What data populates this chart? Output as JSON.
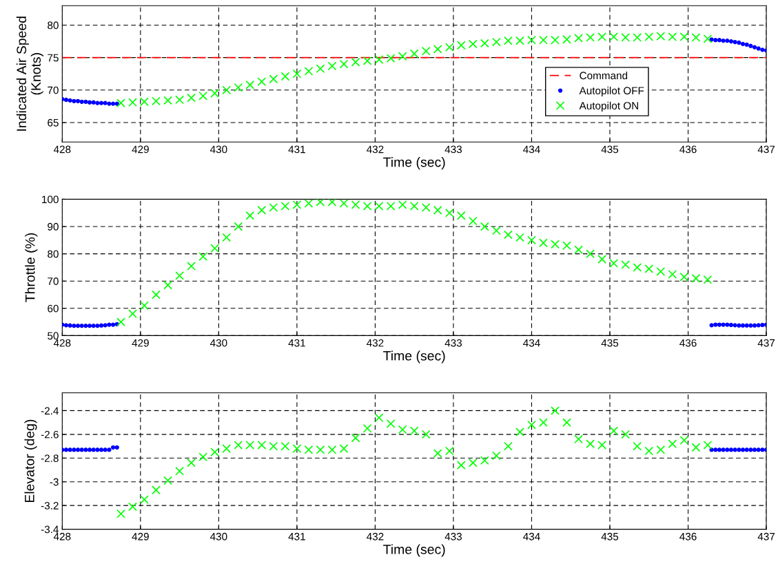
{
  "chart_data": [
    {
      "type": "scatter",
      "xlabel": "Time (sec)",
      "ylabel": "Indicated Air Speed\n(Knots)",
      "xlim": [
        428,
        437
      ],
      "xticks": [
        428,
        429,
        430,
        431,
        432,
        433,
        434,
        435,
        436,
        437
      ],
      "ylim": [
        62,
        83
      ],
      "yticks": [
        65,
        70,
        75,
        80
      ],
      "grid": true,
      "legend": "right",
      "series": [
        {
          "name": "Command",
          "type": "line",
          "color": "#ff0000",
          "line_style": "dashed",
          "marker": "none",
          "x": [
            428,
            437
          ],
          "values": [
            75,
            75
          ]
        },
        {
          "name": "Autopilot OFF",
          "color": "#0000ff",
          "marker": "circle",
          "x": [
            428.0,
            428.05,
            428.1,
            428.15,
            428.2,
            428.25,
            428.3,
            428.35,
            428.4,
            428.45,
            428.5,
            428.55,
            428.6,
            428.65,
            428.7,
            436.3,
            436.35,
            436.4,
            436.45,
            436.5,
            436.55,
            436.6,
            436.65,
            436.7,
            436.75,
            436.8,
            436.85,
            436.9,
            436.95,
            437.0
          ],
          "values": [
            68.6,
            68.5,
            68.4,
            68.3,
            68.3,
            68.2,
            68.2,
            68.1,
            68.1,
            68.0,
            68.0,
            68.0,
            67.9,
            67.9,
            67.9,
            77.8,
            77.7,
            77.7,
            77.6,
            77.6,
            77.5,
            77.4,
            77.3,
            77.1,
            77.0,
            76.8,
            76.6,
            76.4,
            76.2,
            76.1
          ]
        },
        {
          "name": "Autopilot ON",
          "color": "#00ff00",
          "marker": "cross",
          "x": [
            428.75,
            428.9,
            429.05,
            429.2,
            429.35,
            429.5,
            429.65,
            429.8,
            429.95,
            430.1,
            430.25,
            430.4,
            430.55,
            430.7,
            430.85,
            431,
            431.15,
            431.3,
            431.45,
            431.6,
            431.75,
            431.9,
            432.05,
            432.2,
            432.35,
            432.5,
            432.65,
            432.8,
            432.95,
            433.1,
            433.25,
            433.4,
            433.55,
            433.7,
            433.85,
            434,
            434.15,
            434.3,
            434.45,
            434.6,
            434.75,
            434.9,
            435.05,
            435.2,
            435.35,
            435.5,
            435.65,
            435.8,
            435.95,
            436.1,
            436.25
          ],
          "values": [
            68.0,
            68.1,
            68.2,
            68.3,
            68.4,
            68.5,
            68.8,
            69.1,
            69.5,
            70.0,
            70.4,
            70.8,
            71.3,
            71.7,
            72.1,
            72.5,
            72.9,
            73.3,
            73.7,
            74.0,
            74.3,
            74.5,
            74.7,
            74.9,
            75.2,
            75.6,
            76.0,
            76.3,
            76.6,
            76.9,
            77.1,
            77.2,
            77.4,
            77.6,
            77.6,
            77.7,
            77.7,
            77.7,
            77.8,
            78.0,
            78.1,
            78.2,
            78.2,
            78.1,
            78.1,
            78.2,
            78.3,
            78.2,
            78.2,
            78.1,
            77.9
          ]
        }
      ]
    },
    {
      "type": "scatter",
      "xlabel": "Time (sec)",
      "ylabel": "Throttle (%)",
      "xlim": [
        428,
        437
      ],
      "xticks": [
        428,
        429,
        430,
        431,
        432,
        433,
        434,
        435,
        436,
        437
      ],
      "ylim": [
        50,
        100
      ],
      "yticks": [
        50,
        60,
        70,
        80,
        90,
        100
      ],
      "grid": true,
      "series": [
        {
          "color": "#0000ff",
          "marker": "circle",
          "x": [
            428.0,
            428.05,
            428.1,
            428.15,
            428.2,
            428.25,
            428.3,
            428.35,
            428.4,
            428.45,
            428.5,
            428.55,
            428.6,
            428.65,
            428.7,
            436.3,
            436.35,
            436.4,
            436.45,
            436.5,
            436.55,
            436.6,
            436.65,
            436.7,
            436.75,
            436.8,
            436.85,
            436.9,
            436.95,
            437.0
          ],
          "values": [
            54,
            53.8,
            53.7,
            53.6,
            53.6,
            53.6,
            53.6,
            53.6,
            53.6,
            53.6,
            53.7,
            53.8,
            54,
            54,
            54.2,
            53.8,
            54,
            54,
            54,
            54,
            53.9,
            53.8,
            53.7,
            53.7,
            53.7,
            53.7,
            53.7,
            53.8,
            53.9,
            54
          ]
        },
        {
          "color": "#00ff00",
          "marker": "cross",
          "x": [
            428.75,
            428.9,
            429.05,
            429.2,
            429.35,
            429.5,
            429.65,
            429.8,
            429.95,
            430.1,
            430.25,
            430.4,
            430.55,
            430.7,
            430.85,
            431,
            431.15,
            431.3,
            431.45,
            431.6,
            431.75,
            431.9,
            432.05,
            432.2,
            432.35,
            432.5,
            432.65,
            432.8,
            432.95,
            433.1,
            433.25,
            433.4,
            433.55,
            433.7,
            433.85,
            434,
            434.15,
            434.3,
            434.45,
            434.6,
            434.75,
            434.9,
            435.05,
            435.2,
            435.35,
            435.5,
            435.65,
            435.8,
            435.95,
            436.1,
            436.25
          ],
          "values": [
            55,
            58,
            61,
            65,
            68.5,
            72,
            75.5,
            79,
            82,
            86,
            90,
            94,
            96,
            97,
            97.5,
            98,
            98.5,
            99,
            99,
            98.5,
            98,
            97.5,
            97.5,
            97.5,
            98,
            97.5,
            97,
            96,
            95,
            94,
            92,
            90,
            88.5,
            87,
            86,
            85,
            84,
            83.5,
            83,
            81.5,
            80,
            78,
            76.5,
            76,
            75,
            74.5,
            73.5,
            72.5,
            71.5,
            71,
            70.5
          ]
        }
      ]
    },
    {
      "type": "scatter",
      "xlabel": "Time (sec)",
      "ylabel": "Elevator (deg)",
      "xlim": [
        428,
        437
      ],
      "xticks": [
        428,
        429,
        430,
        431,
        432,
        433,
        434,
        435,
        436,
        437
      ],
      "ylim": [
        -3.4,
        -2.25
      ],
      "yticks": [
        -3.4,
        -3.2,
        -3,
        -2.8,
        -2.6,
        -2.4
      ],
      "grid": true,
      "series": [
        {
          "color": "#0000ff",
          "marker": "circle",
          "x": [
            428.0,
            428.05,
            428.1,
            428.15,
            428.2,
            428.25,
            428.3,
            428.35,
            428.4,
            428.45,
            428.5,
            428.55,
            428.6,
            428.65,
            428.7,
            436.3,
            436.35,
            436.4,
            436.45,
            436.5,
            436.55,
            436.6,
            436.65,
            436.7,
            436.75,
            436.8,
            436.85,
            436.9,
            436.95,
            437.0
          ],
          "values": [
            -2.73,
            -2.73,
            -2.73,
            -2.73,
            -2.73,
            -2.73,
            -2.73,
            -2.73,
            -2.73,
            -2.73,
            -2.73,
            -2.73,
            -2.73,
            -2.71,
            -2.71,
            -2.73,
            -2.73,
            -2.73,
            -2.73,
            -2.73,
            -2.73,
            -2.73,
            -2.73,
            -2.73,
            -2.73,
            -2.73,
            -2.73,
            -2.73,
            -2.73,
            -2.73
          ]
        },
        {
          "color": "#00ff00",
          "marker": "cross",
          "x": [
            428.75,
            428.9,
            429.05,
            429.2,
            429.35,
            429.5,
            429.65,
            429.8,
            429.95,
            430.1,
            430.25,
            430.4,
            430.55,
            430.7,
            430.85,
            431,
            431.15,
            431.3,
            431.45,
            431.6,
            431.75,
            431.9,
            432.05,
            432.2,
            432.35,
            432.5,
            432.65,
            432.8,
            432.95,
            433.1,
            433.25,
            433.4,
            433.55,
            433.7,
            433.85,
            434,
            434.15,
            434.3,
            434.45,
            434.6,
            434.75,
            434.9,
            435.05,
            435.2,
            435.35,
            435.5,
            435.65,
            435.8,
            435.95,
            436.1,
            436.25
          ],
          "values": [
            -3.27,
            -3.21,
            -3.15,
            -3.07,
            -2.99,
            -2.91,
            -2.84,
            -2.79,
            -2.75,
            -2.72,
            -2.69,
            -2.69,
            -2.69,
            -2.7,
            -2.7,
            -2.72,
            -2.73,
            -2.73,
            -2.73,
            -2.72,
            -2.63,
            -2.55,
            -2.46,
            -2.51,
            -2.56,
            -2.57,
            -2.6,
            -2.76,
            -2.74,
            -2.86,
            -2.84,
            -2.82,
            -2.78,
            -2.7,
            -2.58,
            -2.52,
            -2.5,
            -2.4,
            -2.5,
            -2.64,
            -2.68,
            -2.69,
            -2.57,
            -2.6,
            -2.7,
            -2.74,
            -2.73,
            -2.68,
            -2.65,
            -2.71,
            -2.69
          ]
        }
      ]
    }
  ]
}
